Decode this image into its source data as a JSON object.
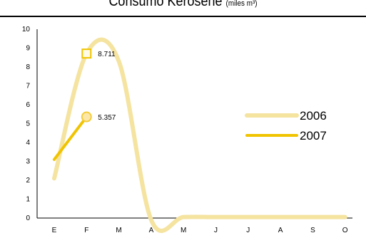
{
  "chart_data": {
    "type": "line",
    "title": "Consumo Kerosene",
    "title_unit": "(miles m³)",
    "categories": [
      "E",
      "F",
      "M",
      "A",
      "M",
      "J",
      "J",
      "A",
      "S",
      "O"
    ],
    "ylim": [
      0,
      10
    ],
    "yticks": [
      "0",
      "1",
      "2",
      "3",
      "4",
      "5",
      "6",
      "7",
      "8",
      "9",
      "10"
    ],
    "grid": false,
    "legend_position": "right",
    "series": [
      {
        "name": "2006",
        "color": "#f5e3a0",
        "smooth": true,
        "values": [
          2.1,
          8.711,
          8.3,
          -0.1,
          0.05,
          0.05,
          0.05,
          0.05,
          0.05,
          0.05
        ]
      },
      {
        "name": "2007",
        "color": "#f0c400",
        "smooth": false,
        "values": [
          3.1,
          5.357,
          null,
          null,
          null,
          null,
          null,
          null,
          null,
          null
        ]
      }
    ],
    "annotations": [
      {
        "series": 0,
        "index": 1,
        "label": "8.711",
        "marker": "square"
      },
      {
        "series": 1,
        "index": 1,
        "label": "5.357",
        "marker": "circle"
      }
    ]
  }
}
